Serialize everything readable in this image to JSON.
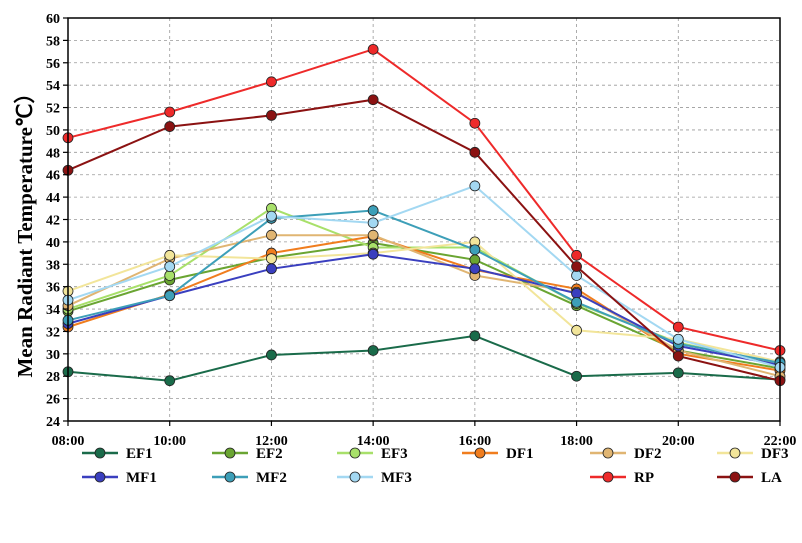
{
  "chart_data": {
    "type": "line",
    "ylabel": "Mean Radiant Temperature℃）",
    "xlabel": "",
    "categories": [
      "08:00",
      "10:00",
      "12:00",
      "14:00",
      "16:00",
      "18:00",
      "20:00",
      "22:00"
    ],
    "ylim": [
      24,
      60
    ],
    "yticks": [
      24,
      26,
      28,
      30,
      32,
      34,
      36,
      38,
      40,
      42,
      44,
      46,
      48,
      50,
      52,
      54,
      56,
      58,
      60
    ],
    "grid": true,
    "legend_position": "bottom",
    "series": [
      {
        "name": "EF1",
        "color": "#1a6b4a",
        "values": [
          28.4,
          27.6,
          29.9,
          30.3,
          31.6,
          28.0,
          28.3,
          27.7
        ]
      },
      {
        "name": "EF2",
        "color": "#6aa532",
        "values": [
          33.8,
          36.6,
          38.6,
          39.9,
          38.4,
          34.3,
          30.3,
          28.7
        ]
      },
      {
        "name": "EF3",
        "color": "#a8e06a",
        "values": [
          34.0,
          37.0,
          43.0,
          39.5,
          39.5,
          34.5,
          31.0,
          29.0
        ]
      },
      {
        "name": "DF1",
        "color": "#f07d1e",
        "values": [
          32.4,
          35.3,
          39.0,
          40.5,
          37.5,
          35.8,
          30.0,
          28.5
        ]
      },
      {
        "name": "DF2",
        "color": "#e0b572",
        "values": [
          34.3,
          38.5,
          40.6,
          40.6,
          37.0,
          35.5,
          30.3,
          28.0
        ]
      },
      {
        "name": "DF3",
        "color": "#f2e59a",
        "values": [
          35.6,
          38.8,
          38.5,
          39.0,
          40.0,
          32.1,
          31.3,
          29.3
        ]
      },
      {
        "name": "MF1",
        "color": "#3a3fbf",
        "values": [
          32.7,
          35.2,
          37.6,
          38.9,
          37.6,
          35.4,
          30.7,
          29.0
        ]
      },
      {
        "name": "MF2",
        "color": "#3d9fb8",
        "values": [
          33.0,
          35.2,
          42.1,
          42.8,
          39.3,
          34.6,
          30.9,
          29.2
        ]
      },
      {
        "name": "MF3",
        "color": "#a3d8f2",
        "values": [
          34.8,
          37.8,
          42.3,
          41.7,
          45.0,
          37.0,
          31.3,
          28.8
        ]
      },
      {
        "name": "RP",
        "color": "#ee2a2a",
        "values": [
          49.3,
          51.6,
          54.3,
          57.2,
          50.6,
          38.8,
          32.4,
          30.3
        ]
      },
      {
        "name": "LA",
        "color": "#8b1212",
        "values": [
          46.4,
          50.3,
          51.3,
          52.7,
          48.0,
          37.8,
          29.8,
          27.6
        ]
      }
    ]
  }
}
